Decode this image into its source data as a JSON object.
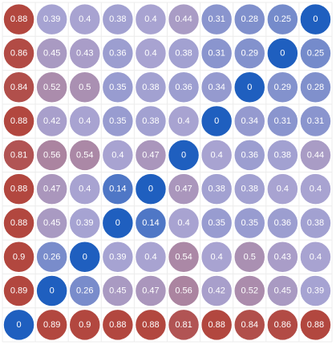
{
  "chart_data": {
    "type": "heatmap",
    "title": "",
    "xlabel": "",
    "ylabel": "",
    "rows": 10,
    "cols": 10,
    "grid": true,
    "color_scale": {
      "low": "#1f5fbf",
      "mid": "#a8a4d2",
      "high": "#b2473f",
      "min": 0,
      "max": 0.88
    },
    "values": [
      [
        0.88,
        0.39,
        0.4,
        0.38,
        0.4,
        0.44,
        0.31,
        0.28,
        0.25,
        0
      ],
      [
        0.86,
        0.45,
        0.43,
        0.36,
        0.4,
        0.38,
        0.31,
        0.29,
        0,
        0.25
      ],
      [
        0.84,
        0.52,
        0.5,
        0.35,
        0.38,
        0.36,
        0.34,
        0,
        0.29,
        0.28
      ],
      [
        0.88,
        0.42,
        0.4,
        0.35,
        0.38,
        0.4,
        0,
        0.34,
        0.31,
        0.31
      ],
      [
        0.81,
        0.56,
        0.54,
        0.4,
        0.47,
        0,
        0.4,
        0.36,
        0.38,
        0.44
      ],
      [
        0.88,
        0.47,
        0.4,
        0.14,
        0,
        0.47,
        0.38,
        0.38,
        0.4,
        0.4
      ],
      [
        0.88,
        0.45,
        0.39,
        0,
        0.14,
        0.4,
        0.35,
        0.35,
        0.36,
        0.38
      ],
      [
        0.9,
        0.26,
        0,
        0.39,
        0.4,
        0.54,
        0.4,
        0.5,
        0.43,
        0.4
      ],
      [
        0.89,
        0,
        0.26,
        0.45,
        0.47,
        0.56,
        0.42,
        0.52,
        0.45,
        0.39
      ],
      [
        0,
        0.89,
        0.9,
        0.88,
        0.88,
        0.81,
        0.88,
        0.84,
        0.86,
        0.88
      ]
    ]
  }
}
